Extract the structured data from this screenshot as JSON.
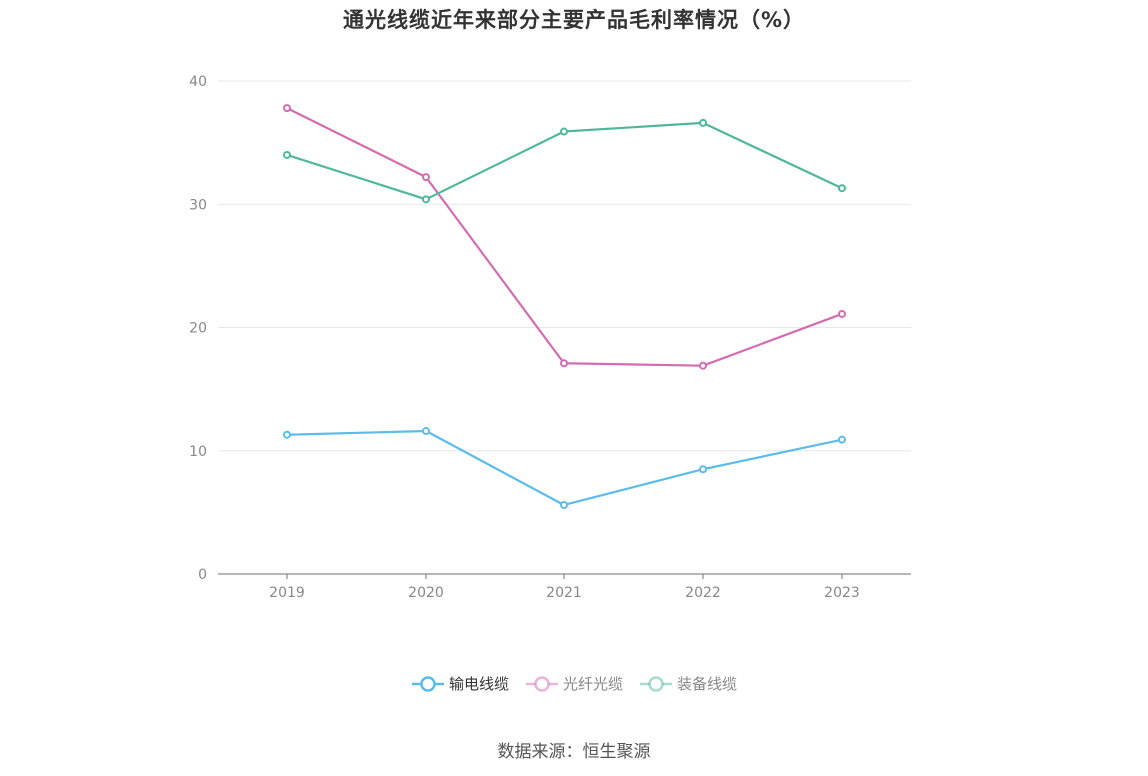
{
  "chart_data": {
    "type": "line",
    "title": "通光线缆近年来部分主要产品毛利率情况（%）",
    "categories": [
      "2019",
      "2020",
      "2021",
      "2022",
      "2023"
    ],
    "ylim": [
      0,
      40
    ],
    "yticks": [
      "0",
      "10",
      "20",
      "30",
      "40"
    ],
    "grid": true,
    "legend_position": "bottom",
    "series": [
      {
        "name": "输电线缆",
        "color": "#5bbcec",
        "values": [
          11.3,
          11.6,
          5.6,
          8.5,
          10.9
        ],
        "active": true
      },
      {
        "name": "光纤光缆",
        "color": "#d46bb3",
        "values": [
          37.8,
          32.2,
          17.1,
          16.9,
          21.1
        ],
        "active": false
      },
      {
        "name": "装备线缆",
        "color": "#4fb89a",
        "values": [
          34.0,
          30.4,
          35.9,
          36.6,
          31.3
        ],
        "active": false
      }
    ]
  },
  "source": "数据来源：恒生聚源"
}
